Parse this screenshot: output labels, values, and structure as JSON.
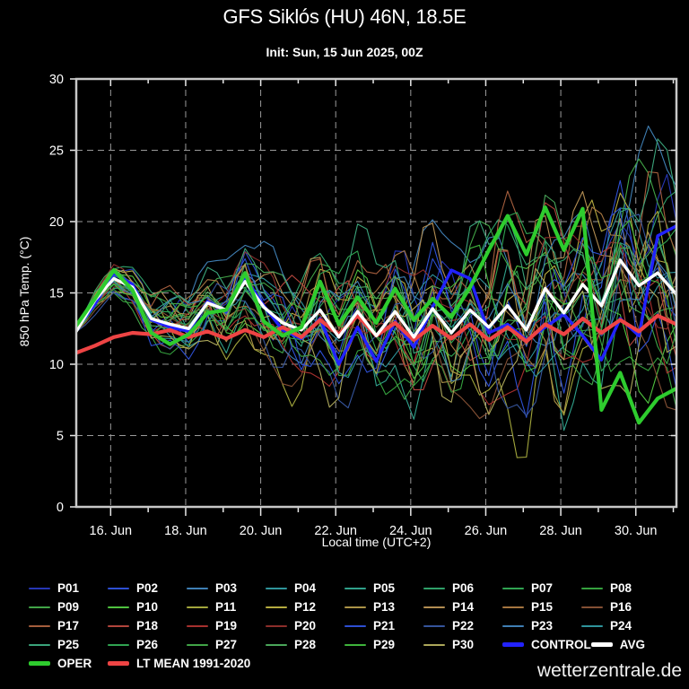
{
  "page": {
    "background": "#000000",
    "watermark": "wetterzentrale.de"
  },
  "header": {
    "title": "GFS Siklós (HU) 46N, 18.5E",
    "subtitle": "Init: Sun, 15 Jun 2025, 00Z"
  },
  "chart_data": {
    "type": "line",
    "title": "GFS Siklós (HU) 46N, 18.5E",
    "subtitle": "Init: Sun, 15 Jun 2025, 00Z",
    "xlabel": "Local time (UTC+2)",
    "ylabel": "850 hPa Temp. (°C)",
    "ylim": [
      0,
      30
    ],
    "yticks": [
      0,
      5,
      10,
      15,
      20,
      25,
      30
    ],
    "xtick_labels": [
      "16. Jun",
      "18. Jun",
      "20. Jun",
      "22. Jun",
      "24. Jun",
      "26. Jun",
      "28. Jun",
      "30. Jun"
    ],
    "x_days_span": 16,
    "x_first_tick_day_offset": 0.917,
    "grid": "dashed gray, horizontal at 5..25, vertical every 2 days",
    "legend_position": "below",
    "time_step_hours": 12,
    "series": [
      {
        "name": "CONTROL",
        "color": "#2222ff",
        "width": 3.4,
        "values": [
          12.4,
          14.2,
          16.4,
          15.6,
          13.1,
          12.6,
          12.3,
          14.4,
          13.7,
          16.1,
          14.1,
          12.4,
          11.8,
          13.2,
          10.0,
          12.6,
          10.2,
          13.0,
          11.2,
          14.0,
          16.6,
          16.0,
          12.2,
          12.8,
          11.7,
          12.6,
          13.5,
          12.0,
          10.3,
          13.2,
          12.0,
          19.0,
          19.7
        ]
      },
      {
        "name": "LT MEAN 1991-2020",
        "color": "#ee4444",
        "width": 4.2,
        "values": [
          10.8,
          11.3,
          11.9,
          12.2,
          12.1,
          12.4,
          11.9,
          12.3,
          11.8,
          12.4,
          11.9,
          12.6,
          11.9,
          13.1,
          12.1,
          13.4,
          12.0,
          12.9,
          11.7,
          12.7,
          11.8,
          12.8,
          11.7,
          12.6,
          11.6,
          12.8,
          12.1,
          13.2,
          12.2,
          13.1,
          12.3,
          13.4,
          12.8
        ]
      },
      {
        "name": "AVG",
        "color": "#ffffff",
        "width": 3.4,
        "values": [
          12.3,
          14.5,
          16.0,
          15.4,
          13.2,
          12.8,
          12.5,
          14.3,
          13.8,
          15.8,
          14.0,
          12.9,
          12.4,
          13.8,
          11.9,
          13.7,
          12.0,
          13.7,
          11.9,
          13.9,
          12.2,
          13.8,
          12.6,
          14.1,
          12.4,
          15.3,
          13.6,
          15.6,
          14.1,
          17.3,
          15.5,
          16.4,
          14.9
        ]
      },
      {
        "name": "OPER",
        "color": "#2ecc2e",
        "width": 4.2,
        "values": [
          12.7,
          14.6,
          16.6,
          15.2,
          12.2,
          11.4,
          12.1,
          13.6,
          13.8,
          16.4,
          13.0,
          12.0,
          12.6,
          15.8,
          12.8,
          14.7,
          12.9,
          15.3,
          13.1,
          14.6,
          13.3,
          15.4,
          18.0,
          20.4,
          17.7,
          21.0,
          18.0,
          20.9,
          6.8,
          9.4,
          5.9,
          7.6,
          8.3
        ]
      }
    ],
    "ensemble_members": [
      {
        "name": "P01",
        "color": "#2636b4",
        "seed": 1
      },
      {
        "name": "P02",
        "color": "#2d4fd2",
        "seed": 2
      },
      {
        "name": "P03",
        "color": "#3f7fb4",
        "seed": 3
      },
      {
        "name": "P04",
        "color": "#2f949b",
        "seed": 4
      },
      {
        "name": "P05",
        "color": "#30a18b",
        "seed": 5
      },
      {
        "name": "P06",
        "color": "#2fa069",
        "seed": 6
      },
      {
        "name": "P07",
        "color": "#30a351",
        "seed": 7
      },
      {
        "name": "P08",
        "color": "#35a13e",
        "seed": 8
      },
      {
        "name": "P09",
        "color": "#41a447",
        "seed": 9
      },
      {
        "name": "P10",
        "color": "#4fc23f",
        "seed": 10
      },
      {
        "name": "P11",
        "color": "#a2a63c",
        "seed": 11
      },
      {
        "name": "P12",
        "color": "#b5ab40",
        "seed": 12
      },
      {
        "name": "P13",
        "color": "#ab9347",
        "seed": 13
      },
      {
        "name": "P14",
        "color": "#b28d52",
        "seed": 14
      },
      {
        "name": "P15",
        "color": "#a57540",
        "seed": 15
      },
      {
        "name": "P16",
        "color": "#845034",
        "seed": 16
      },
      {
        "name": "P17",
        "color": "#a55e3d",
        "seed": 17
      },
      {
        "name": "P18",
        "color": "#b2453c",
        "seed": 18
      },
      {
        "name": "P19",
        "color": "#a6302e",
        "seed": 19
      },
      {
        "name": "P20",
        "color": "#8c2e2b",
        "seed": 20
      },
      {
        "name": "P21",
        "color": "#2d4fd2",
        "seed": 21
      },
      {
        "name": "P22",
        "color": "#35549b",
        "seed": 22
      },
      {
        "name": "P23",
        "color": "#3f7fb4",
        "seed": 23
      },
      {
        "name": "P24",
        "color": "#2f949b",
        "seed": 24
      },
      {
        "name": "P25",
        "color": "#3ba47b",
        "seed": 25
      },
      {
        "name": "P26",
        "color": "#30a351",
        "seed": 26
      },
      {
        "name": "P27",
        "color": "#41a447",
        "seed": 27
      },
      {
        "name": "P28",
        "color": "#4aa65a",
        "seed": 28
      },
      {
        "name": "P29",
        "color": "#3fb43c",
        "seed": 29
      },
      {
        "name": "P30",
        "color": "#aca75a",
        "seed": 30
      }
    ],
    "ensemble_style": {
      "width": 1.1,
      "spread_final_degC": 9
    },
    "legend_order": [
      "P01",
      "P02",
      "P03",
      "P04",
      "P05",
      "P06",
      "P07",
      "P08",
      "P09",
      "P10",
      "P11",
      "P12",
      "P13",
      "P14",
      "P15",
      "P16",
      "P17",
      "P18",
      "P19",
      "P20",
      "P21",
      "P22",
      "P23",
      "P24",
      "P25",
      "P26",
      "P27",
      "P28",
      "P29",
      "P30",
      "CONTROL",
      "AVG",
      "OPER",
      "LT MEAN 1991-2020"
    ]
  },
  "colors": {
    "background": "#000000",
    "frame": "#c8c8c8",
    "grid": "#9a9a9a",
    "tick": "#e8e8e8",
    "text": "#ffffff"
  }
}
